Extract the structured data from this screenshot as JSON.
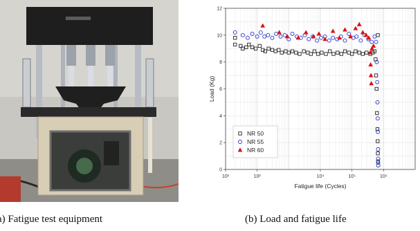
{
  "figure": {
    "caption_a": "a) Fatigue test equipment",
    "caption_b": "(b) Load and fatigue life"
  },
  "colors": {
    "nr50": "#222222",
    "nr55": "#2233cc",
    "nr60": "#dd1111",
    "frame_dark": "#1e1e1e",
    "frame_silver": "#b7bcc3",
    "cabinet": "#d8cdb5"
  },
  "chart_data": {
    "type": "scatter",
    "xlabel": "Fatigue life (Cycles)",
    "ylabel": "Load (Kg)",
    "xscale": "log",
    "xlim": [
      10,
      10000000
    ],
    "ylim": [
      0,
      12
    ],
    "x_ticks": [
      {
        "v": 10,
        "label": "10¹"
      },
      {
        "v": 100,
        "label": "10²"
      },
      {
        "v": 10000,
        "label": "10⁴"
      },
      {
        "v": 100000,
        "label": "10⁵"
      },
      {
        "v": 1000000,
        "label": "10⁶"
      }
    ],
    "y_ticks": [
      0,
      2,
      4,
      6,
      8,
      10,
      12
    ],
    "grid": true,
    "legend_position": "bottom-left",
    "series": [
      {
        "name": "NR 50",
        "marker": "square",
        "color": "#222222",
        "points": [
          [
            20,
            9.8
          ],
          [
            20,
            9.3
          ],
          [
            30,
            9.2
          ],
          [
            35,
            9.0
          ],
          [
            45,
            9.1
          ],
          [
            55,
            9.3
          ],
          [
            70,
            9.1
          ],
          [
            90,
            9.0
          ],
          [
            120,
            9.2
          ],
          [
            150,
            8.9
          ],
          [
            180,
            8.8
          ],
          [
            230,
            9.0
          ],
          [
            300,
            8.9
          ],
          [
            380,
            8.8
          ],
          [
            480,
            8.9
          ],
          [
            600,
            8.7
          ],
          [
            800,
            8.8
          ],
          [
            1000,
            8.7
          ],
          [
            1300,
            8.8
          ],
          [
            1700,
            8.7
          ],
          [
            2200,
            8.6
          ],
          [
            3000,
            8.8
          ],
          [
            4000,
            8.7
          ],
          [
            5000,
            8.6
          ],
          [
            6500,
            8.8
          ],
          [
            8500,
            8.6
          ],
          [
            11000,
            8.7
          ],
          [
            15000,
            8.6
          ],
          [
            20000,
            8.8
          ],
          [
            26000,
            8.6
          ],
          [
            35000,
            8.7
          ],
          [
            46000,
            8.6
          ],
          [
            60000,
            8.8
          ],
          [
            80000,
            8.7
          ],
          [
            100000,
            8.6
          ],
          [
            130000,
            8.8
          ],
          [
            170000,
            8.7
          ],
          [
            220000,
            8.6
          ],
          [
            290000,
            8.7
          ],
          [
            380000,
            8.6
          ],
          [
            460000,
            8.7
          ],
          [
            520000,
            8.8
          ],
          [
            560000,
            8.2
          ],
          [
            580000,
            7.0
          ],
          [
            600000,
            6.0
          ],
          [
            620000,
            4.2
          ],
          [
            640000,
            3.0
          ],
          [
            650000,
            2.1
          ],
          [
            660000,
            1.2
          ],
          [
            670000,
            0.6
          ],
          [
            660000,
            10.0
          ]
        ]
      },
      {
        "name": "NR 55",
        "marker": "circle",
        "color": "#2233cc",
        "points": [
          [
            20,
            10.2
          ],
          [
            35,
            10.0
          ],
          [
            50,
            9.8
          ],
          [
            70,
            10.1
          ],
          [
            100,
            9.9
          ],
          [
            130,
            10.2
          ],
          [
            170,
            9.9
          ],
          [
            220,
            10.0
          ],
          [
            300,
            9.8
          ],
          [
            400,
            10.1
          ],
          [
            550,
            9.9
          ],
          [
            750,
            10.0
          ],
          [
            1000,
            9.7
          ],
          [
            1300,
            10.1
          ],
          [
            1800,
            9.9
          ],
          [
            2400,
            9.8
          ],
          [
            3200,
            10.0
          ],
          [
            4300,
            9.7
          ],
          [
            5800,
            9.9
          ],
          [
            7800,
            9.6
          ],
          [
            10500,
            9.8
          ],
          [
            14000,
            9.9
          ],
          [
            19000,
            9.6
          ],
          [
            25000,
            9.8
          ],
          [
            34000,
            9.7
          ],
          [
            45000,
            9.9
          ],
          [
            60000,
            9.6
          ],
          [
            80000,
            10.1
          ],
          [
            110000,
            9.8
          ],
          [
            140000,
            9.9
          ],
          [
            190000,
            9.6
          ],
          [
            250000,
            10.0
          ],
          [
            330000,
            9.7
          ],
          [
            420000,
            9.5
          ],
          [
            520000,
            9.9
          ],
          [
            580000,
            9.5
          ],
          [
            610000,
            8.0
          ],
          [
            630000,
            6.5
          ],
          [
            640000,
            5.0
          ],
          [
            650000,
            3.8
          ],
          [
            660000,
            2.8
          ],
          [
            670000,
            1.5
          ],
          [
            675000,
            0.8
          ],
          [
            680000,
            0.3
          ],
          [
            672000,
            0.5
          ]
        ]
      },
      {
        "name": "NR 60",
        "marker": "triangle",
        "color": "#dd1111",
        "points": [
          [
            150,
            10.7
          ],
          [
            500,
            10.2
          ],
          [
            900,
            9.9
          ],
          [
            2000,
            9.8
          ],
          [
            3500,
            10.2
          ],
          [
            6000,
            9.9
          ],
          [
            9000,
            10.1
          ],
          [
            14000,
            9.7
          ],
          [
            25000,
            10.3
          ],
          [
            40000,
            9.8
          ],
          [
            60000,
            10.4
          ],
          [
            90000,
            9.9
          ],
          [
            130000,
            10.5
          ],
          [
            170000,
            10.8
          ],
          [
            220000,
            10.2
          ],
          [
            280000,
            10.0
          ],
          [
            340000,
            9.8
          ],
          [
            380000,
            8.7
          ],
          [
            390000,
            7.8
          ],
          [
            400000,
            7.0
          ],
          [
            410000,
            6.4
          ],
          [
            430000,
            9.0
          ],
          [
            480000,
            9.2
          ]
        ]
      }
    ]
  }
}
